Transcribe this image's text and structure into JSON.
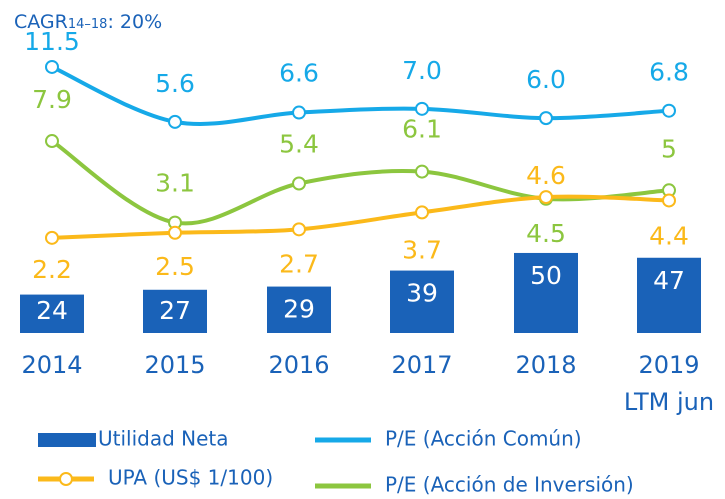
{
  "chart_data": {
    "type": "bar-line",
    "annotation": [
      "CAGR",
      "14–18",
      ": 20%"
    ],
    "categories": [
      "2014",
      "2015",
      "2016",
      "2017",
      "2018",
      "2019\nLTM jun"
    ],
    "ylim": [
      0,
      208
    ],
    "y2lim": [
      -3.4,
      16.2
    ],
    "y3lim": [
      -17.1,
      18.7
    ],
    "series": [
      {
        "name": "Utilidad Neta",
        "type": "bar",
        "color": "#1a62b8",
        "values": [
          24,
          27,
          29,
          39,
          50,
          47
        ]
      },
      {
        "name": "P/E (Acción Común)",
        "type": "line",
        "axis": "y3",
        "color": "#16a9e8",
        "values": [
          11.5,
          5.6,
          6.6,
          7.0,
          6.0,
          6.8
        ],
        "value_labels": [
          "11.5",
          "5.6",
          "6.6",
          "7.0",
          "6.0",
          "6.8"
        ]
      },
      {
        "name": "P/E (Acción de Inversión)",
        "type": "line",
        "axis": "y2",
        "color": "#8cc63f",
        "values": [
          7.9,
          3.1,
          5.4,
          6.1,
          4.5,
          5.0
        ]
      },
      {
        "name": "UPA (US$ 1/100)",
        "type": "line",
        "axis": "y2",
        "marker": true,
        "color": "#fbb91a",
        "values": [
          2.2,
          2.5,
          2.7,
          3.7,
          4.6,
          4.4
        ]
      }
    ]
  }
}
